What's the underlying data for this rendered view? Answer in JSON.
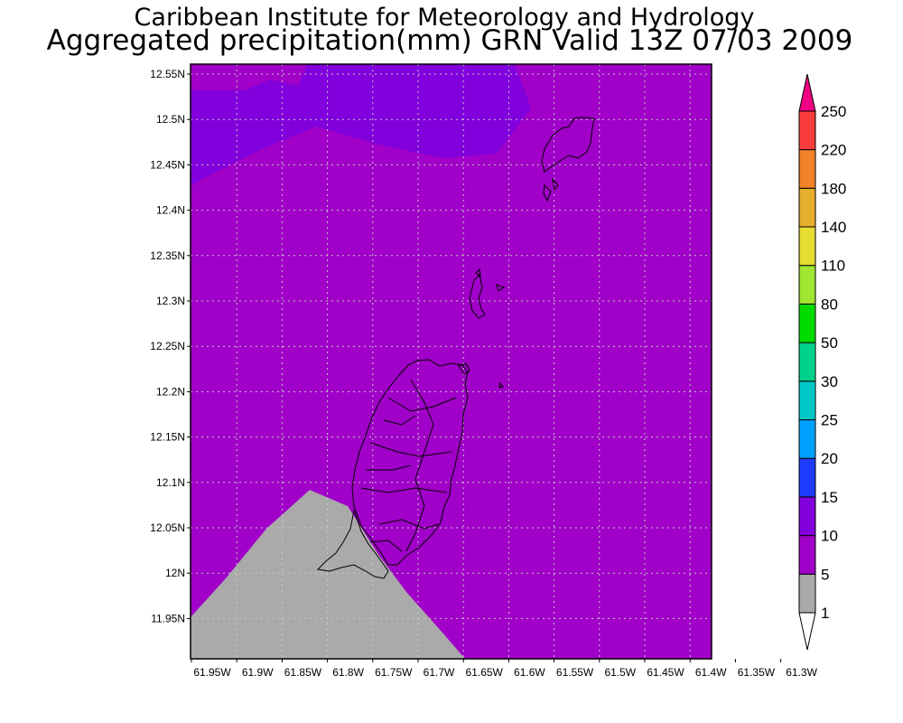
{
  "title_line1": "Caribbean Institute for Meteorology and Hydrology",
  "title_line2": "Aggregated precipitation(mm) GRN Valid 13Z 07/03 2009",
  "map": {
    "lon_ticks": [
      "61.95W",
      "61.9W",
      "61.85W",
      "61.8W",
      "61.75W",
      "61.7W",
      "61.65W",
      "61.6W",
      "61.55W",
      "61.5W",
      "61.45W",
      "61.4W",
      "61.35W",
      "61.3W"
    ],
    "lat_ticks": [
      "12.55N",
      "12.5N",
      "12.45N",
      "12.4N",
      "12.35N",
      "12.3N",
      "12.25N",
      "12.2N",
      "12.15N",
      "12.1N",
      "12.05N",
      "12N",
      "11.95N"
    ],
    "grid": true,
    "shading": {
      "background_class": "5-10",
      "regions": [
        {
          "class": "10-15",
          "where": "north"
        },
        {
          "class": "1-5",
          "where": "southwest"
        }
      ]
    }
  },
  "colorbar": {
    "placement": "right",
    "labels": [
      "1",
      "5",
      "10",
      "15",
      "20",
      "25",
      "30",
      "50",
      "80",
      "110",
      "140",
      "180",
      "220",
      "250"
    ],
    "colors": [
      "#aaaaaa",
      "#a000c8",
      "#8200dc",
      "#1e3cff",
      "#00a0ff",
      "#00c8c8",
      "#00d28c",
      "#00dc00",
      "#a0e632",
      "#e6dc32",
      "#e6af2d",
      "#f08228",
      "#fa3c3c",
      "#f00082"
    ],
    "below_min_color": "#ffffff",
    "above_max_color": "#f00082"
  }
}
